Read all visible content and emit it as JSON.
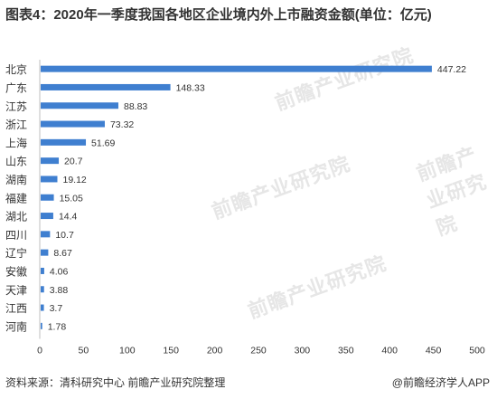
{
  "title": "图表4：2020年一季度我国各地区企业境内外上市融资金额(单位：亿元)",
  "chart_data": {
    "type": "bar",
    "orientation": "horizontal",
    "title": "图表4：2020年一季度我国各地区企业境内外上市融资金额(单位：亿元)",
    "categories": [
      "北京",
      "广东",
      "江苏",
      "浙江",
      "上海",
      "山东",
      "湖南",
      "福建",
      "湖北",
      "四川",
      "辽宁",
      "安徽",
      "天津",
      "江西",
      "河南"
    ],
    "values": [
      447.22,
      148.33,
      88.83,
      73.32,
      51.69,
      20.7,
      19.12,
      15.05,
      14.4,
      10.7,
      8.67,
      4.06,
      3.88,
      3.7,
      1.78
    ],
    "value_labels": [
      "447.22",
      "148.33",
      "88.83",
      "73.32",
      "51.69",
      "20.7",
      "19.12",
      "15.05",
      "14.4",
      "10.7",
      "8.67",
      "4.06",
      "3.88",
      "3.7",
      "1.78"
    ],
    "xlim": [
      0,
      500
    ],
    "x_ticks": [
      0,
      50,
      100,
      150,
      200,
      250,
      300,
      350,
      400,
      450,
      500
    ],
    "bar_color": "#3f7fd0",
    "grid": false
  },
  "watermark": "前瞻产业研究院",
  "footer": {
    "source": "资料来源：清科研究中心 前瞻产业研究院整理",
    "brand": "@前瞻经济学人APP"
  }
}
